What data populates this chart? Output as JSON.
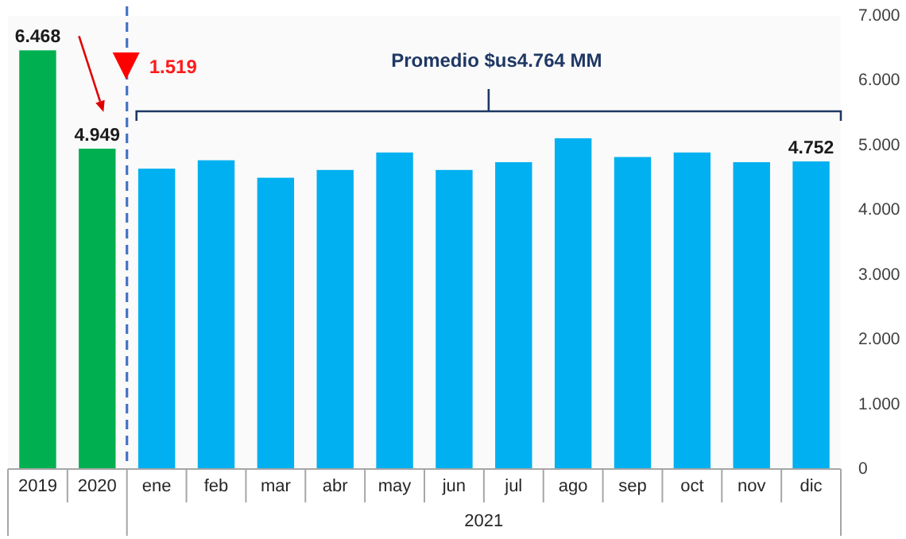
{
  "chart_data": {
    "type": "bar",
    "categories": [
      "2019",
      "2020",
      "ene",
      "feb",
      "mar",
      "abr",
      "may",
      "jun",
      "jul",
      "ago",
      "sep",
      "oct",
      "nov",
      "dic"
    ],
    "values": [
      6468,
      4949,
      4640,
      4770,
      4500,
      4620,
      4890,
      4620,
      4740,
      5110,
      4820,
      4890,
      4740,
      4752
    ],
    "colors": [
      "#00b050",
      "#00b050",
      "#00b0f0",
      "#00b0f0",
      "#00b0f0",
      "#00b0f0",
      "#00b0f0",
      "#00b0f0",
      "#00b0f0",
      "#00b0f0",
      "#00b0f0",
      "#00b0f0",
      "#00b0f0",
      "#00b0f0"
    ],
    "value_labels": [
      "6.468",
      "4.949",
      null,
      null,
      null,
      null,
      null,
      null,
      null,
      null,
      null,
      null,
      null,
      "4.752"
    ],
    "ylim": [
      0,
      7000
    ],
    "yticks": [
      0,
      {
        "value": 1000,
        "label": "1.000"
      },
      {
        "value": 2000,
        "label": "2.000"
      },
      {
        "value": 3000,
        "label": "3.000"
      },
      {
        "value": 4000,
        "label": "4.000"
      },
      {
        "value": 5000,
        "label": "5.000"
      },
      {
        "value": 6000,
        "label": "6.000"
      },
      {
        "value": 7000,
        "label": "7.000"
      }
    ],
    "annotations": [
      "1.519",
      "Promedio $us4.764 MM",
      "2021"
    ]
  }
}
